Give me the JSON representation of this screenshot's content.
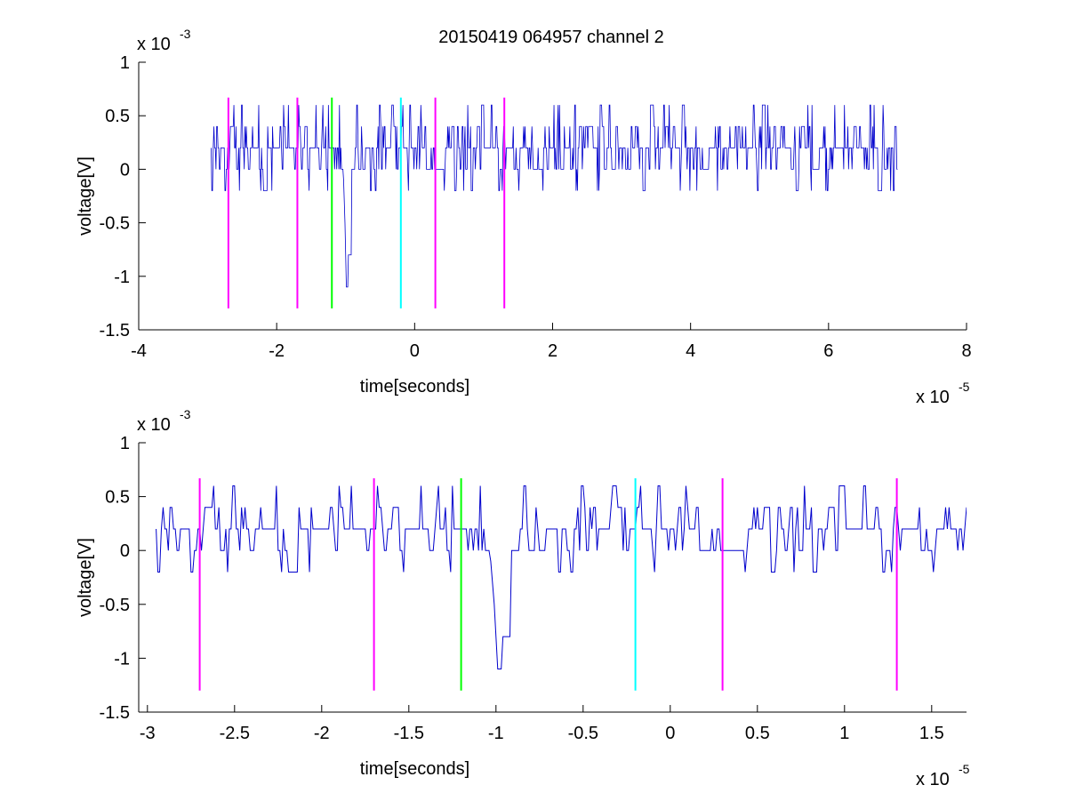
{
  "figure": {
    "title": "20150419 064957 channel 2",
    "background": "#ffffff"
  },
  "colors": {
    "signal": "#0000cc",
    "magenta": "#ff00ff",
    "green": "#00ff00",
    "cyan": "#00ffff",
    "axis": "#000000"
  },
  "chart_data": [
    {
      "type": "line",
      "title": "20150419 064957 channel 2",
      "xlabel": "time[seconds]",
      "ylabel": "voltage[V]",
      "x_exponent_label": "x 10",
      "x_exponent": "-5",
      "y_exponent_label": "x 10",
      "y_exponent": "-3",
      "xlim": [
        -4,
        8
      ],
      "ylim": [
        -1.5,
        1
      ],
      "xticks": [
        -4,
        -2,
        0,
        2,
        4,
        6,
        8
      ],
      "xtick_labels": [
        "-4",
        "-2",
        "0",
        "2",
        "4",
        "6",
        "8"
      ],
      "yticks": [
        -1.5,
        -1,
        -0.5,
        0,
        0.5,
        1
      ],
      "ytick_labels": [
        "-1.5",
        "-1",
        "-0.5",
        "0",
        "0.5",
        "1"
      ],
      "grid": false,
      "series": [
        {
          "values_note": "noisy voltage trace sampled from x=-2.95 to x=7.0 (x1e-5 s), mostly quantized between 0 and 0.4, occasional dips to -0.2, one spike to -1.2 near x=-0.98",
          "x_start": -2.95,
          "x_end": 7.0,
          "baseline_levels": [
            0,
            0.2,
            0.4,
            0.6,
            -0.2
          ],
          "spike": {
            "x": -0.98,
            "y": -1.2
          }
        }
      ],
      "markers": [
        {
          "x": -2.7,
          "color": "magenta",
          "y_from": -1.3,
          "y_to": 0.67
        },
        {
          "x": -1.7,
          "color": "magenta",
          "y_from": -1.3,
          "y_to": 0.67
        },
        {
          "x": -1.2,
          "color": "green",
          "y_from": -1.3,
          "y_to": 0.67
        },
        {
          "x": -0.2,
          "color": "cyan",
          "y_from": -1.3,
          "y_to": 0.67
        },
        {
          "x": 0.3,
          "color": "magenta",
          "y_from": -1.3,
          "y_to": 0.67
        },
        {
          "x": 1.3,
          "color": "magenta",
          "y_from": -1.3,
          "y_to": 0.67
        }
      ]
    },
    {
      "type": "line",
      "title": "",
      "xlabel": "time[seconds]",
      "ylabel": "voltage[V]",
      "x_exponent_label": "x 10",
      "x_exponent": "-5",
      "y_exponent_label": "x 10",
      "y_exponent": "-3",
      "xlim": [
        -3.05,
        1.7
      ],
      "ylim": [
        -1.5,
        1
      ],
      "xticks": [
        -3,
        -2.5,
        -2,
        -1.5,
        -1,
        -0.5,
        0,
        0.5,
        1,
        1.5
      ],
      "xtick_labels": [
        "-3",
        "-2.5",
        "-2",
        "-1.5",
        "-1",
        "-0.5",
        "0",
        "0.5",
        "1",
        "1.5"
      ],
      "yticks": [
        -1.5,
        -1,
        -0.5,
        0,
        0.5,
        1
      ],
      "ytick_labels": [
        "-1.5",
        "-1",
        "-0.5",
        "0",
        "0.5",
        "1"
      ],
      "grid": false,
      "series": [
        {
          "values_note": "zoomed view of the same voltage trace from x=-2.95 to x=1.7 (x1e-5 s)",
          "x_start": -2.95,
          "x_end": 1.7,
          "baseline_levels": [
            0,
            0.2,
            0.4,
            0.6,
            -0.2
          ],
          "spike": {
            "x": -0.98,
            "y": -1.2
          }
        }
      ],
      "markers": [
        {
          "x": -2.7,
          "color": "magenta",
          "y_from": -1.3,
          "y_to": 0.67
        },
        {
          "x": -1.7,
          "color": "magenta",
          "y_from": -1.3,
          "y_to": 0.67
        },
        {
          "x": -1.2,
          "color": "green",
          "y_from": -1.3,
          "y_to": 0.67
        },
        {
          "x": -0.2,
          "color": "cyan",
          "y_from": -1.3,
          "y_to": 0.67
        },
        {
          "x": 0.3,
          "color": "magenta",
          "y_from": -1.3,
          "y_to": 0.67
        },
        {
          "x": 1.3,
          "color": "magenta",
          "y_from": -1.3,
          "y_to": 0.67
        }
      ]
    }
  ]
}
